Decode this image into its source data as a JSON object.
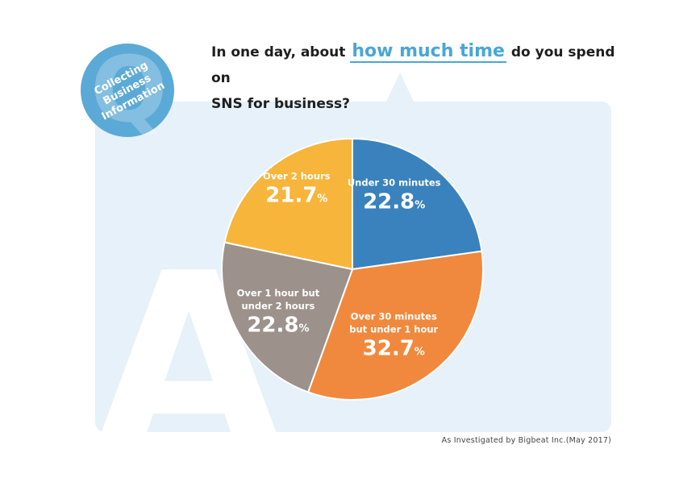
{
  "badge": {
    "letter": "Q",
    "lines": [
      "Collecting",
      "Business",
      "Information"
    ],
    "color": "#5ba9d6"
  },
  "question": {
    "before": "In one day, about ",
    "highlight": "how much time",
    "after_1": " do you spend on",
    "line2": "SNS for business?",
    "highlight_color": "#4aa6d6"
  },
  "answer_letter": "A",
  "chart_data": {
    "type": "pie",
    "unit": "%",
    "slices": [
      {
        "label": "Under 30 minutes",
        "label_lines": [
          "Under 30 minutes"
        ],
        "value": 22.8,
        "value_text": "22.8",
        "color": "#3a82bd"
      },
      {
        "label": "Over 30 minutes but under 1 hour",
        "label_lines": [
          "Over 30 minutes",
          "but under 1 hour"
        ],
        "value": 32.7,
        "value_text": "32.7",
        "color": "#f0893d"
      },
      {
        "label": "Over 1 hour but under 2 hours",
        "label_lines": [
          "Over 1 hour but",
          "under 2 hours"
        ],
        "value": 22.8,
        "value_text": "22.8",
        "color": "#9c918b"
      },
      {
        "label": "Over 2 hours",
        "label_lines": [
          "Over 2 hours"
        ],
        "value": 21.7,
        "value_text": "21.7",
        "color": "#f8b53b"
      }
    ]
  },
  "source": "As Investigated by Bigbeat Inc.(May 2017)"
}
